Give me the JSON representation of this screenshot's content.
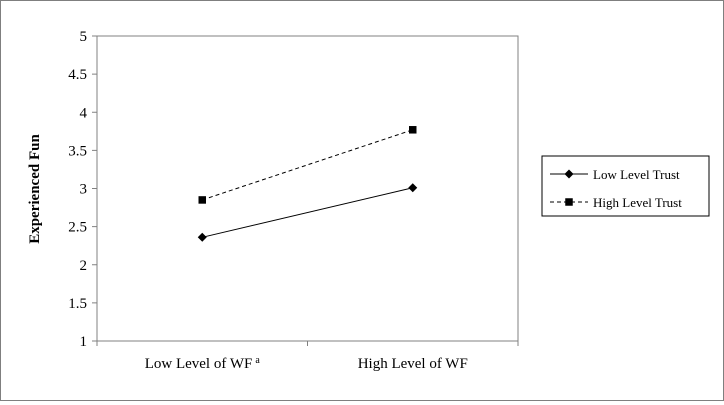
{
  "chart_data": {
    "type": "line",
    "categories": [
      "Low Level of WF",
      "High Level of WF"
    ],
    "category_superscripts": [
      "a",
      ""
    ],
    "series": [
      {
        "name": "Low Level Trust",
        "values": [
          2.36,
          3.01
        ],
        "line_style": "solid",
        "marker": "diamond"
      },
      {
        "name": "High Level Trust",
        "values": [
          2.85,
          3.77
        ],
        "line_style": "dashed",
        "marker": "square"
      }
    ],
    "title": "",
    "xlabel": "",
    "ylabel": "Experienced Fun",
    "ylim": [
      1,
      5
    ],
    "yticks": [
      "1",
      "1.5",
      "2",
      "2.5",
      "3",
      "3.5",
      "4",
      "4.5",
      "5"
    ],
    "grid": false,
    "legend_position": "right",
    "colors": {
      "line": "#000000",
      "axis": "#808080",
      "frame": "#7f7f7f"
    }
  }
}
